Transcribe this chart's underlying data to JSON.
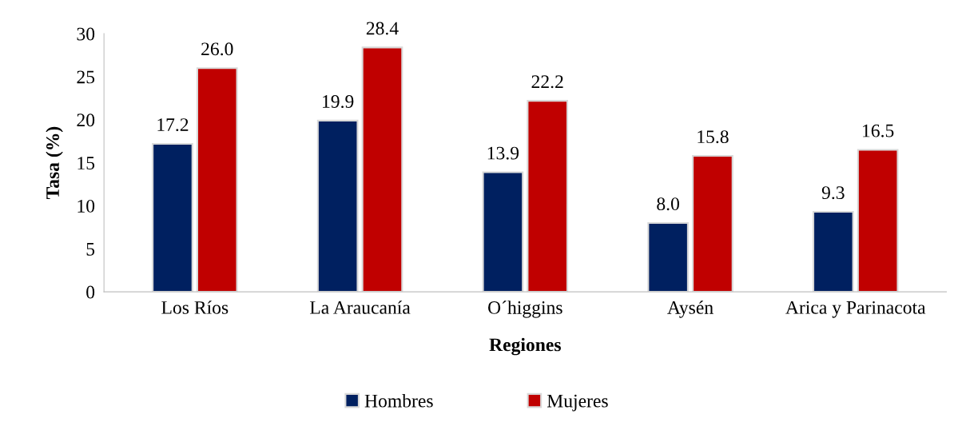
{
  "chart_data": {
    "type": "bar",
    "xlabel": "Regiones",
    "ylabel": "Tasa (%)",
    "categories": [
      "Los Ríos",
      "La Araucanía",
      "O´higgins",
      "Aysén",
      "Arica y Parinacota"
    ],
    "series": [
      {
        "name": "Hombres",
        "color": "#002060",
        "values": [
          17.2,
          19.9,
          13.9,
          8.0,
          9.3
        ],
        "value_labels": [
          "17.2",
          "19.9",
          "13.9",
          "8.0",
          "9.3"
        ]
      },
      {
        "name": "Mujeres",
        "color": "#c00000",
        "values": [
          26.0,
          28.4,
          22.2,
          15.8,
          16.5
        ],
        "value_labels": [
          "26.0",
          "28.4",
          "22.2",
          "15.8",
          "16.5"
        ]
      }
    ],
    "ylim": [
      0,
      30
    ],
    "yticks": [
      0,
      5,
      10,
      15,
      20,
      25,
      30
    ],
    "grid": false,
    "legend": "bottom"
  }
}
